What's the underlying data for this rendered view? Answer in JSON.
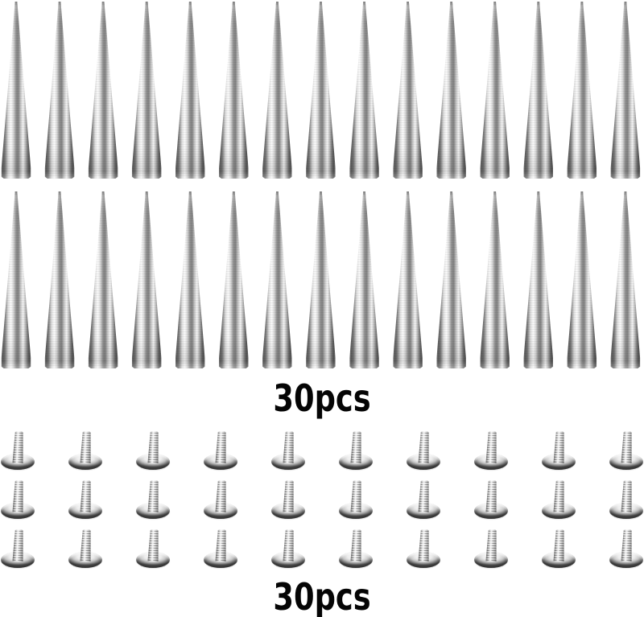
{
  "product_photo": {
    "background_color": "#ffffff",
    "label_color": "#000000",
    "spikes": {
      "count_label": "30pcs",
      "rows": 2,
      "per_row": 15,
      "total": 30,
      "item": "metal-cone-spike",
      "metal_colors": {
        "dark": "#525252",
        "mid": "#8e8e8e",
        "light": "#fbfbfb"
      }
    },
    "screws": {
      "count_label": "30pcs",
      "rows": 3,
      "per_row": 10,
      "total": 30,
      "item": "flat-head-screw",
      "metal_colors": {
        "dark": "#5f5f5f",
        "mid": "#9b9b9b",
        "light": "#ffffff"
      }
    }
  }
}
